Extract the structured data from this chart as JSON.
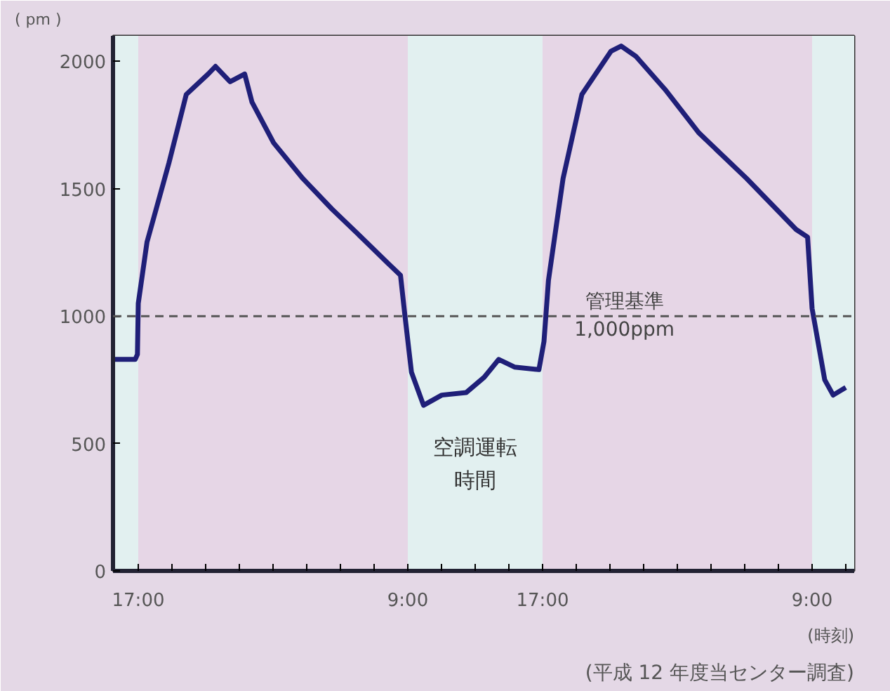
{
  "chart_data": {
    "type": "line",
    "ylabel": "( pm )",
    "xlabel": "(時刻)",
    "annotations": [
      "(平成 12 年度当センター調査)"
    ],
    "x": [
      "2000-01-01T15:30",
      "2000-01-01T16:49",
      "2000-01-01T16:57",
      "2000-01-01T17:00",
      "2000-01-01T17:31",
      "2000-01-01T18:49",
      "2000-01-01T19:51",
      "2000-01-01T21:09",
      "2000-01-01T21:35",
      "2000-01-01T22:27",
      "2000-01-01T23:19",
      "2000-01-01T23:45",
      "2000-01-02T01:02",
      "2000-01-02T02:46",
      "2000-01-02T04:30",
      "2000-01-02T06:14",
      "2000-01-02T07:47",
      "2000-01-02T08:34",
      "2000-01-02T08:50",
      "2000-01-02T09:13",
      "2000-01-02T09:56",
      "2000-01-02T11:01",
      "2000-01-02T12:28",
      "2000-01-02T13:32",
      "2000-01-02T14:24",
      "2000-01-02T15:20",
      "2000-01-02T16:47",
      "2000-01-02T17:05",
      "2000-01-02T17:21",
      "2000-01-02T18:13",
      "2000-01-02T19:20",
      "2000-01-02T21:04",
      "2000-01-02T21:40",
      "2000-01-02T22:32",
      "2000-01-03T00:16",
      "2000-01-03T02:16",
      "2000-01-03T05:07",
      "2000-01-03T08:03",
      "2000-01-03T08:44",
      "2000-01-03T09:00",
      "2000-01-03T09:45",
      "2000-01-03T10:15",
      "2000-01-03T11:00"
    ],
    "series": [
      {
        "color": "#1f1f78",
        "values": [
          830,
          830,
          850,
          1050,
          1290,
          1600,
          1870,
          1950,
          1980,
          1920,
          1950,
          1840,
          1680,
          1540,
          1420,
          1310,
          1210,
          1160,
          1000,
          780,
          650,
          690,
          700,
          760,
          830,
          800,
          790,
          900,
          1140,
          1540,
          1870,
          2040,
          2060,
          2020,
          1890,
          1720,
          1540,
          1340,
          1310,
          1030,
          750,
          690,
          720
        ]
      }
    ],
    "xlim": [
      "2000-01-01T15:30",
      "2000-01-03T11:30"
    ],
    "ylim": [
      0,
      2100
    ],
    "yticks": [
      0,
      500,
      1000,
      1500,
      2000
    ],
    "xticks": [
      {
        "value": "2000-01-01T17:00",
        "label": "17:00"
      },
      {
        "value": "2000-01-01T19:00",
        "label": null
      },
      {
        "value": "2000-01-01T21:00",
        "label": null
      },
      {
        "value": "2000-01-01T23:00",
        "label": null
      },
      {
        "value": "2000-01-02T01:00",
        "label": null
      },
      {
        "value": "2000-01-02T03:00",
        "label": null
      },
      {
        "value": "2000-01-02T05:00",
        "label": null
      },
      {
        "value": "2000-01-02T07:00",
        "label": null
      },
      {
        "value": "2000-01-02T09:00",
        "label": "9:00"
      },
      {
        "value": "2000-01-02T11:00",
        "label": null
      },
      {
        "value": "2000-01-02T13:00",
        "label": null
      },
      {
        "value": "2000-01-02T15:00",
        "label": null
      },
      {
        "value": "2000-01-02T17:00",
        "label": "17:00"
      },
      {
        "value": "2000-01-02T19:00",
        "label": null
      },
      {
        "value": "2000-01-02T21:00",
        "label": null
      },
      {
        "value": "2000-01-02T23:00",
        "label": null
      },
      {
        "value": "2000-01-03T01:00",
        "label": null
      },
      {
        "value": "2000-01-03T03:00",
        "label": null
      },
      {
        "value": "2000-01-03T05:00",
        "label": null
      },
      {
        "value": "2000-01-03T07:00",
        "label": null
      },
      {
        "value": "2000-01-03T09:00",
        "label": "9:00"
      },
      {
        "value": "2000-01-03T11:00",
        "label": null
      }
    ],
    "bands": [
      {
        "axis": "x",
        "from": "2000-01-01T15:30",
        "to": "2000-01-01T17:00",
        "color": "#e2f0f0"
      },
      {
        "axis": "x",
        "from": "2000-01-01T17:00",
        "to": "2000-01-02T09:00",
        "color": "#e6d6e6"
      },
      {
        "axis": "x",
        "from": "2000-01-02T09:00",
        "to": "2000-01-02T17:00",
        "color": "#e2f0f0",
        "label": "空調運転時間"
      },
      {
        "axis": "x",
        "from": "2000-01-02T17:00",
        "to": "2000-01-03T09:00",
        "color": "#e6d6e6"
      },
      {
        "axis": "x",
        "from": "2000-01-03T09:00",
        "to": "2000-01-03T11:30",
        "color": "#e2f0f0"
      }
    ],
    "ref_lines": [
      {
        "axis": "y",
        "value": 1000,
        "label": "管理基準\n1,000ppm",
        "color": "#555555",
        "line_style": "dashed"
      }
    ],
    "line_style": "solid"
  }
}
